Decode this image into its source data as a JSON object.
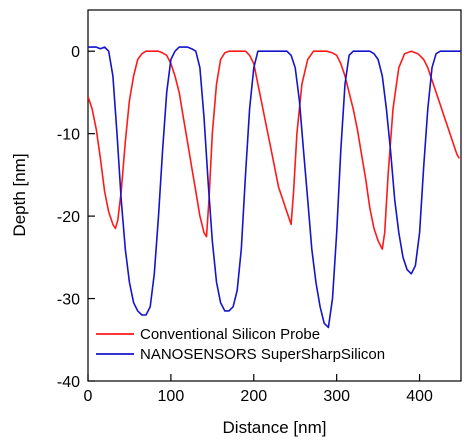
{
  "chart_data": {
    "type": "line",
    "title": "",
    "xlabel": "Distance [nm]",
    "ylabel": "Depth [nm]",
    "xlim": [
      0,
      450
    ],
    "ylim": [
      -40,
      5
    ],
    "xticks": [
      0,
      100,
      200,
      300,
      400
    ],
    "yticks": [
      0,
      -10,
      -20,
      -30,
      -40
    ],
    "grid": false,
    "legend_position": "bottom-left",
    "series": [
      {
        "name": "Conventional Silicon Probe",
        "color": "#ff1a1a",
        "x": [
          0,
          5,
          10,
          15,
          20,
          25,
          30,
          33,
          36,
          40,
          45,
          50,
          55,
          60,
          65,
          70,
          75,
          80,
          85,
          90,
          95,
          100,
          105,
          110,
          115,
          120,
          125,
          130,
          135,
          140,
          143,
          146,
          150,
          155,
          160,
          165,
          170,
          175,
          180,
          185,
          190,
          195,
          200,
          205,
          210,
          215,
          220,
          225,
          230,
          235,
          240,
          245,
          248,
          252,
          258,
          265,
          272,
          280,
          288,
          295,
          300,
          305,
          310,
          315,
          320,
          325,
          330,
          335,
          340,
          345,
          350,
          355,
          358,
          362,
          368,
          375,
          382,
          390,
          398,
          405,
          410,
          415,
          420,
          425,
          430,
          435,
          440,
          445,
          448
        ],
        "y": [
          -5.5,
          -7,
          -9.5,
          -13,
          -17,
          -19.5,
          -21,
          -21.5,
          -20.5,
          -17,
          -11,
          -6,
          -3,
          -1,
          -0.3,
          0,
          0,
          0,
          0,
          -0.2,
          -0.5,
          -1.5,
          -3,
          -5,
          -8,
          -11,
          -14,
          -17,
          -20,
          -22,
          -22.5,
          -18,
          -10,
          -4,
          -1,
          -0.2,
          0,
          0,
          0,
          0,
          0,
          -0.5,
          -1.5,
          -4,
          -6.5,
          -9,
          -11.5,
          -14,
          -16.5,
          -18,
          -19.5,
          -21,
          -17,
          -10,
          -4,
          -1,
          0,
          0,
          0,
          -0.2,
          -0.5,
          -1.5,
          -3,
          -5,
          -7,
          -9.5,
          -12.5,
          -15.5,
          -19,
          -21.5,
          -23,
          -24,
          -22,
          -15,
          -7,
          -2,
          -0.3,
          0,
          -0.3,
          -1,
          -2,
          -3.5,
          -5,
          -6.5,
          -8,
          -9.5,
          -11,
          -12.5,
          -13
        ]
      },
      {
        "name": "NANOSENSORS SuperSharpSilicon",
        "color": "#1414cc",
        "x": [
          0,
          5,
          10,
          15,
          20,
          25,
          30,
          35,
          40,
          45,
          50,
          55,
          60,
          65,
          70,
          75,
          80,
          85,
          90,
          95,
          100,
          105,
          110,
          115,
          120,
          125,
          130,
          135,
          140,
          145,
          150,
          155,
          160,
          165,
          170,
          175,
          180,
          185,
          190,
          195,
          200,
          205,
          210,
          215,
          220,
          225,
          230,
          235,
          240,
          245,
          250,
          255,
          260,
          265,
          270,
          275,
          280,
          285,
          290,
          295,
          300,
          305,
          310,
          315,
          320,
          325,
          330,
          335,
          340,
          345,
          350,
          355,
          360,
          365,
          370,
          375,
          380,
          385,
          390,
          395,
          400,
          405,
          410,
          415,
          420,
          425,
          430,
          435,
          440,
          445,
          450
        ],
        "y": [
          0.5,
          0.5,
          0.5,
          0.3,
          0.5,
          0,
          -3,
          -10,
          -18,
          -24,
          -28,
          -30.5,
          -31.5,
          -32,
          -32,
          -31,
          -27,
          -20,
          -12,
          -5,
          -1,
          0,
          0.5,
          0.5,
          0.5,
          0.3,
          0,
          -2,
          -8,
          -16,
          -23,
          -28,
          -30.5,
          -31.5,
          -31.5,
          -31,
          -29,
          -24,
          -15,
          -7,
          -2,
          0,
          0,
          0,
          0,
          0,
          0,
          0,
          0,
          -0.5,
          -2,
          -6,
          -12,
          -18,
          -24,
          -28,
          -31,
          -33,
          -33.5,
          -30,
          -22,
          -12,
          -4,
          -0.5,
          0,
          0,
          0,
          0,
          0,
          -0.3,
          -1,
          -3,
          -7,
          -12,
          -18,
          -22,
          -25,
          -26.5,
          -27,
          -26,
          -22,
          -14,
          -7,
          -2,
          -0.3,
          0,
          0,
          0,
          0,
          0,
          0
        ]
      }
    ]
  }
}
